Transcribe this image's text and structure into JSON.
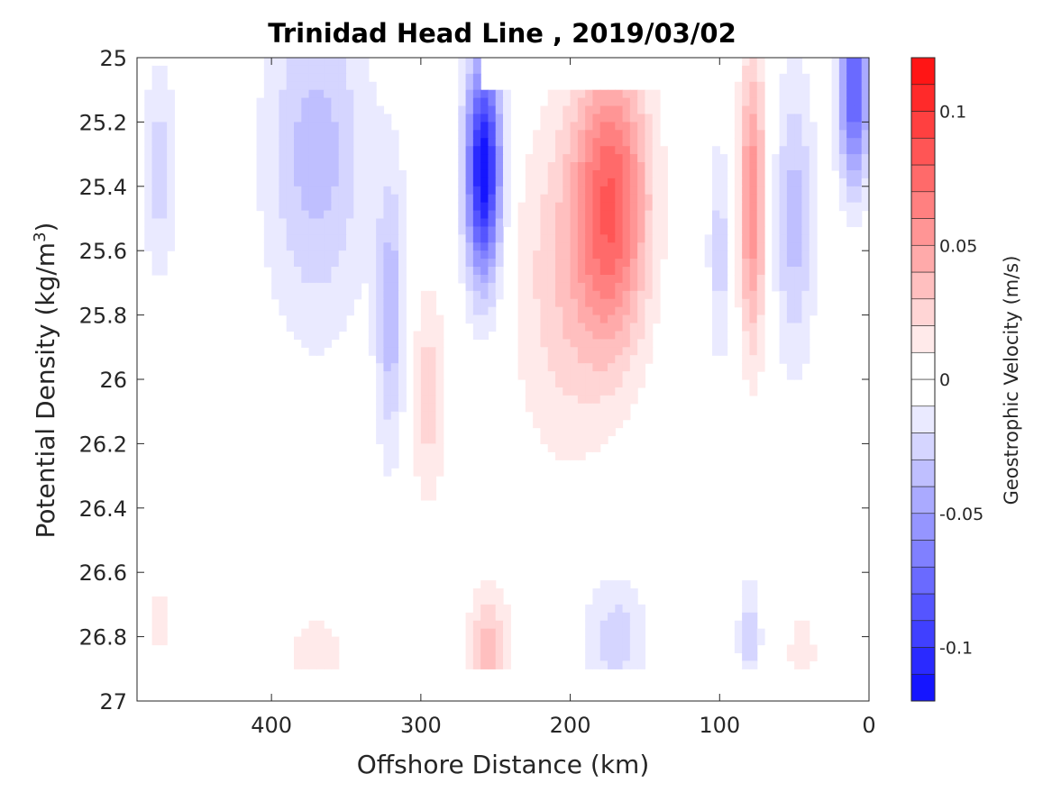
{
  "chart_data": {
    "type": "heatmap",
    "title": "Trinidad Head Line , 2019/03/02",
    "xlabel": "Offshore Distance (km)",
    "ylabel": "Potential Density (kg/m",
    "ylabel_sup": "3",
    "ylabel_close": ")",
    "x_reversed": true,
    "y_reversed": true,
    "xlim": [
      0,
      490
    ],
    "ylim": [
      25,
      27
    ],
    "xticks": [
      400,
      300,
      200,
      100,
      0
    ],
    "yticks": [
      25,
      25.2,
      25.4,
      25.6,
      25.8,
      26,
      26.2,
      26.4,
      26.6,
      26.8,
      27
    ],
    "ytick_labels": [
      "25",
      "25.2",
      "25.4",
      "25.6",
      "25.8",
      "26",
      "26.2",
      "26.4",
      "26.6",
      "26.8",
      "27"
    ],
    "colorbar": {
      "label": "Geostrophic Velocity (m/s)",
      "range": [
        -0.12,
        0.12
      ],
      "step": 0.01,
      "ticks": [
        0.1,
        0.05,
        0,
        -0.05,
        -0.1
      ],
      "tick_labels": [
        "0.1",
        "0.05",
        "0",
        "-0.05",
        "-0.1"
      ],
      "negative_color": "#0000ff",
      "positive_color": "#ff0000",
      "zero_color": "#ffffff"
    },
    "data_extent": {
      "y_max": 26.9,
      "top_gap_x": [
        90,
        260
      ],
      "top_gap_y_max": 25.1
    },
    "features": [
      {
        "name": "nearshore southward jet",
        "x": 10,
        "y": 25.1,
        "sx": 10,
        "sy": 0.3,
        "v": -0.085
      },
      {
        "name": "nearshore southward band",
        "x": 50,
        "y": 25.5,
        "sx": 14,
        "sy": 0.45,
        "v": -0.035
      },
      {
        "name": "northward jet near 75 km",
        "x": 78,
        "y": 25.45,
        "sx": 9,
        "sy": 0.45,
        "v": 0.06
      },
      {
        "name": "weak southward band near 100 km",
        "x": 100,
        "y": 25.6,
        "sx": 8,
        "sy": 0.35,
        "v": -0.025
      },
      {
        "name": "northward core near 170 km",
        "x": 172,
        "y": 25.45,
        "sx": 25,
        "sy": 0.45,
        "v": 0.075
      },
      {
        "name": "northward plume near 200 km",
        "x": 205,
        "y": 25.7,
        "sx": 35,
        "sy": 0.55,
        "v": 0.025
      },
      {
        "name": "strong southward core near 260 km",
        "x": 258,
        "y": 25.35,
        "sx": 12,
        "sy": 0.35,
        "v": -0.12
      },
      {
        "name": "northward band near 295 km",
        "x": 295,
        "y": 26.05,
        "sx": 12,
        "sy": 0.35,
        "v": 0.025
      },
      {
        "name": "southward band near 320 km",
        "x": 320,
        "y": 25.8,
        "sx": 10,
        "sy": 0.45,
        "v": -0.035
      },
      {
        "name": "southward band near 370 km",
        "x": 370,
        "y": 25.3,
        "sx": 35,
        "sy": 0.55,
        "v": -0.035
      },
      {
        "name": "southward band near 470 km",
        "x": 475,
        "y": 25.35,
        "sx": 12,
        "sy": 0.35,
        "v": -0.025
      },
      {
        "name": "deep northward cell near 255 km",
        "x": 255,
        "y": 26.85,
        "sx": 14,
        "sy": 0.2,
        "v": 0.035
      },
      {
        "name": "deep southward cell near 170 km",
        "x": 170,
        "y": 26.8,
        "sx": 22,
        "sy": 0.2,
        "v": -0.025
      },
      {
        "name": "deep southward cell near 80 km",
        "x": 80,
        "y": 26.8,
        "sx": 8,
        "sy": 0.2,
        "v": -0.025
      },
      {
        "name": "deep northward cell near 45 km",
        "x": 45,
        "y": 26.85,
        "sx": 12,
        "sy": 0.15,
        "v": 0.015
      },
      {
        "name": "deep northward cell near 370 km",
        "x": 370,
        "y": 26.85,
        "sx": 25,
        "sy": 0.15,
        "v": 0.015
      },
      {
        "name": "deep northward cell near 470 km",
        "x": 475,
        "y": 26.75,
        "sx": 10,
        "sy": 0.25,
        "v": 0.012
      }
    ]
  }
}
